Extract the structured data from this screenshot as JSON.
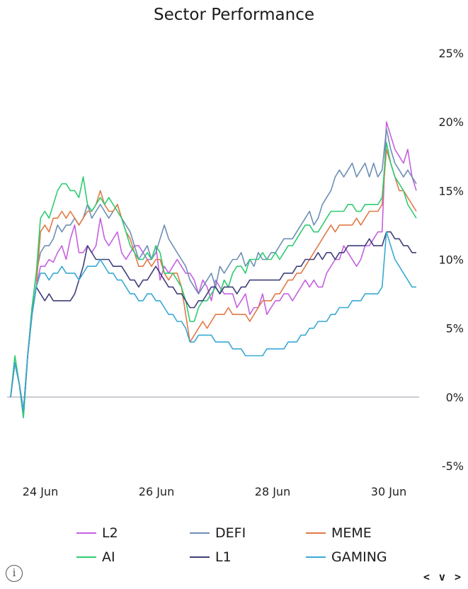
{
  "chart_data": {
    "type": "line",
    "title": "Sector Performance",
    "xlabel": "",
    "ylabel": "",
    "x_tick_labels": [
      "24 Jun",
      "26 Jun",
      "28 Jun",
      "30 Jun"
    ],
    "y_tick_labels": [
      "25%",
      "20%",
      "15%",
      "10%",
      "5%",
      "0%",
      "-5%"
    ],
    "y_ticks": [
      25,
      20,
      15,
      10,
      5,
      0,
      -5
    ],
    "ylim": [
      -5,
      25
    ],
    "grid": false,
    "zero_line": true,
    "legend_position": "bottom",
    "series": [
      {
        "name": "L2",
        "color": "#c561e0",
        "values": [
          0,
          2.5,
          1,
          -1.5,
          3,
          6,
          8,
          9.5,
          9.5,
          10,
          9.8,
          10.5,
          11,
          10,
          11.5,
          12.5,
          10.5,
          10.5,
          11,
          10.5,
          11,
          13,
          11.5,
          11,
          11.5,
          12,
          10.5,
          10,
          10.5,
          11,
          11,
          10.5,
          10,
          10,
          11,
          8.5,
          9.5,
          9,
          9.5,
          10,
          9.5,
          9,
          9,
          8.5,
          7.5,
          8.5,
          8,
          7,
          8.5,
          8,
          7.5,
          7.5,
          7.5,
          6.5,
          7,
          7.5,
          6,
          6.5,
          6.5,
          7.5,
          6,
          6.5,
          7,
          7,
          7.5,
          7.5,
          7,
          7.5,
          8,
          8.5,
          8,
          8.5,
          8,
          8,
          9,
          9.5,
          10,
          10,
          11,
          10.5,
          10,
          9.5,
          10,
          11,
          11,
          11.5,
          12,
          12,
          20,
          19,
          18,
          17.5,
          17,
          18,
          16,
          15
        ]
      },
      {
        "name": "DEFI",
        "color": "#6e8fb5",
        "values": [
          0,
          2.5,
          1,
          -1,
          3,
          6.5,
          9,
          10.5,
          11,
          11,
          11.5,
          12.5,
          12,
          12.5,
          12.5,
          13,
          12.5,
          13,
          14,
          13,
          13.5,
          14,
          13.5,
          13,
          13.5,
          14,
          13,
          12.5,
          12,
          11,
          10,
          10.5,
          11,
          10,
          10.5,
          11.5,
          12.5,
          11.5,
          11,
          10.5,
          10,
          9.5,
          8.5,
          8,
          7.5,
          8,
          8.5,
          9,
          8,
          9.5,
          9,
          9.5,
          10,
          10,
          10.5,
          9.5,
          10,
          9.5,
          10.5,
          10,
          10,
          10.5,
          10.5,
          11,
          11.5,
          11.5,
          11.5,
          12,
          12.5,
          13,
          13.5,
          12.5,
          13,
          14,
          14.5,
          15,
          16,
          16.5,
          16,
          16.5,
          17,
          16,
          16.5,
          17,
          16,
          17,
          16,
          16.5,
          19.5,
          18,
          17,
          16.5,
          16,
          16.5,
          16,
          15.5
        ]
      },
      {
        "name": "MEME",
        "color": "#e07a46",
        "values": [
          0,
          2.5,
          1,
          -1,
          3,
          6,
          8,
          12,
          12.5,
          12,
          13,
          13,
          13.5,
          13,
          13.5,
          13,
          12.5,
          13,
          13.5,
          13.5,
          14,
          15,
          14,
          13.5,
          13.5,
          14,
          13,
          12,
          11.5,
          10.5,
          9.5,
          9.5,
          10,
          9.5,
          10,
          10,
          9,
          8.5,
          9,
          9,
          8,
          6,
          4,
          4.5,
          5,
          5.5,
          5,
          5.5,
          6,
          6,
          6,
          6.5,
          6,
          6,
          6,
          6,
          5.5,
          6,
          6.5,
          7,
          7,
          7,
          7.5,
          7.5,
          8,
          8.5,
          8.5,
          9,
          9,
          9.5,
          10,
          10.5,
          11,
          11.5,
          12,
          12.5,
          12,
          12.5,
          12.5,
          12.5,
          12.5,
          13,
          12.5,
          13,
          13.5,
          13.5,
          13.5,
          14,
          18,
          17,
          16,
          15,
          15,
          14.5,
          14,
          13.5
        ]
      },
      {
        "name": "AI",
        "color": "#2ecc71",
        "values": [
          0,
          3,
          1,
          -1.5,
          3,
          6.5,
          9,
          13,
          13.5,
          13,
          14,
          15,
          15.5,
          15.5,
          15,
          15,
          14.5,
          16,
          14,
          13.5,
          14,
          14.5,
          14,
          14.5,
          14,
          13.5,
          13,
          12,
          11,
          10.5,
          10,
          10,
          10.5,
          10,
          11,
          10.5,
          9,
          9,
          9,
          8.5,
          8,
          7,
          5.5,
          5.5,
          6.5,
          7,
          7,
          7.5,
          8,
          7.5,
          8.5,
          8,
          9,
          9.5,
          9.5,
          9,
          10,
          10,
          10,
          10.5,
          10,
          10,
          10.5,
          10,
          10.5,
          11,
          11,
          11.5,
          12,
          12.5,
          12.5,
          12,
          12,
          12.5,
          13,
          13.5,
          13.5,
          13.5,
          13.5,
          14,
          14,
          13.5,
          13.5,
          14,
          14,
          14,
          14,
          14.5,
          18.5,
          17,
          16,
          15.5,
          15,
          14,
          13.5,
          13
        ]
      },
      {
        "name": "L1",
        "color": "#3f3f7a",
        "values": [
          0,
          2.5,
          1,
          -1,
          3,
          6,
          8,
          7.5,
          7,
          7.5,
          7,
          7,
          7,
          7,
          7,
          7.5,
          8.5,
          9.5,
          11,
          10.5,
          10,
          10,
          10,
          10,
          9.5,
          9.5,
          9.5,
          9,
          8.5,
          8.5,
          8,
          8.5,
          8.5,
          9,
          9.5,
          9,
          8.5,
          8,
          8,
          7.5,
          7.5,
          7,
          6.5,
          6.5,
          7,
          7,
          7.5,
          8,
          8,
          7.5,
          8,
          8,
          8,
          7.5,
          8,
          8,
          8.5,
          8.5,
          8.5,
          8.5,
          8.5,
          8.5,
          8.5,
          8.5,
          9,
          9,
          9,
          9.5,
          9.5,
          10,
          10,
          10,
          10.5,
          10,
          10.5,
          10.5,
          10,
          10.5,
          10.5,
          11,
          11,
          11,
          11,
          11,
          11.5,
          11,
          11,
          11,
          12,
          12,
          11.5,
          11.5,
          11,
          11,
          10.5,
          10.5
        ]
      },
      {
        "name": "GAMING",
        "color": "#39a9d4",
        "values": [
          0,
          2.5,
          1,
          -1,
          3,
          6,
          8,
          9,
          9,
          8.5,
          9,
          9,
          9.5,
          9,
          9,
          9,
          8.5,
          9,
          9.5,
          9.5,
          9.5,
          10,
          9.5,
          9,
          9,
          8.5,
          8.5,
          8,
          7.5,
          7.5,
          7,
          7,
          7.5,
          7.5,
          7,
          7,
          6.5,
          6,
          6,
          5.5,
          5.5,
          5,
          4,
          4,
          4.5,
          4.5,
          4.5,
          4.5,
          4,
          4,
          4,
          4,
          3.5,
          3.5,
          3.5,
          3,
          3,
          3,
          3,
          3,
          3.5,
          3.5,
          3.5,
          3.5,
          3.5,
          4,
          4,
          4,
          4.5,
          4.5,
          5,
          5,
          5.5,
          5.5,
          5.5,
          6,
          6,
          6.5,
          6.5,
          6.5,
          7,
          7,
          7,
          7.5,
          7.5,
          7.5,
          7.5,
          8,
          12,
          11,
          10,
          9.5,
          9,
          8.5,
          8,
          8
        ]
      }
    ]
  },
  "controls": {
    "info_icon_label": "i",
    "nav_label": "< v >"
  }
}
